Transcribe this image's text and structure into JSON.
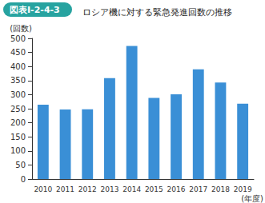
{
  "chart_data": {
    "type": "bar",
    "title": "ロシア機に対する緊急発進回数の推移",
    "annotations": [
      "図表Ⅰ-2-4-3"
    ],
    "y_label": "(回数)",
    "x_label": "(年度)",
    "categories": [
      "2010",
      "2011",
      "2012",
      "2013",
      "2014",
      "2015",
      "2016",
      "2017",
      "2018",
      "2019"
    ],
    "values": [
      264,
      247,
      248,
      359,
      473,
      288,
      301,
      390,
      343,
      268
    ],
    "color": "#3a8fd6",
    "ylim": [
      0,
      500
    ],
    "yticks": [
      0,
      50,
      100,
      150,
      200,
      250,
      300,
      350,
      400,
      450,
      500
    ],
    "grid": false
  }
}
